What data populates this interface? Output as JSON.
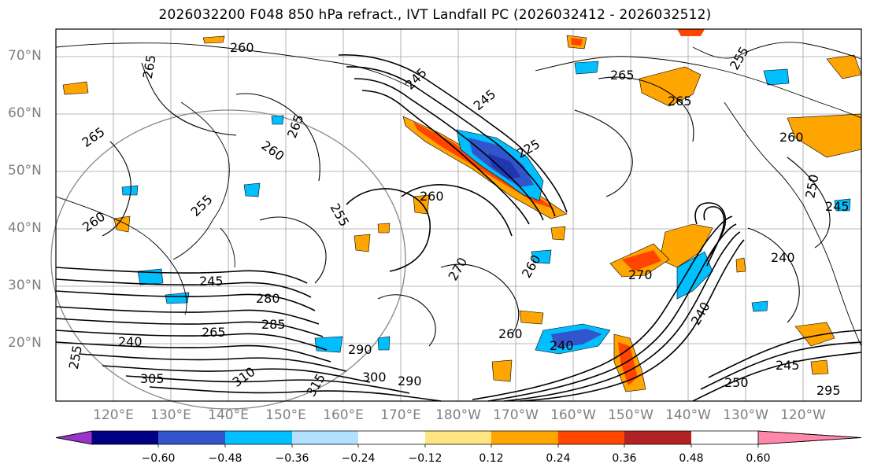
{
  "title": "2026032200 F048 850 hPa refract., IVT Landfall PC (2026032412 - 2026032512)",
  "lat_labels": [
    "70°N",
    "60°N",
    "50°N",
    "40°N",
    "30°N",
    "20°N"
  ],
  "lon_labels": [
    "120°E",
    "130°E",
    "140°E",
    "150°E",
    "160°E",
    "170°E",
    "180°W",
    "170°W",
    "160°W",
    "150°W",
    "140°W",
    "130°W",
    "120°W"
  ],
  "contour_labels": [
    "260",
    "265",
    "265",
    "265",
    "245",
    "255",
    "265",
    "260",
    "265",
    "225",
    "260",
    "255",
    "260",
    "250",
    "245",
    "240",
    "270",
    "245",
    "280",
    "285",
    "265",
    "270",
    "260",
    "290",
    "300",
    "290",
    "305",
    "310",
    "315",
    "255",
    "260",
    "240",
    "245",
    "295",
    "250",
    "255",
    "260",
    "240",
    "240",
    "245"
  ],
  "colorbar": {
    "ticks": [
      "−0.60",
      "−0.48",
      "−0.36",
      "−0.24",
      "−0.12",
      "0.12",
      "0.24",
      "0.36",
      "0.48",
      "0.60"
    ],
    "colors": [
      "#9933cc",
      "#000080",
      "#3355cc",
      "#00bfff",
      "#b3e0ff",
      "#ffffff",
      "#ffe680",
      "#ffa500",
      "#ff4500",
      "#b22222",
      "#ff88aa"
    ]
  },
  "colors": {
    "land_border": "#000000",
    "grid": "#a0a0a0",
    "label": "#808080"
  }
}
